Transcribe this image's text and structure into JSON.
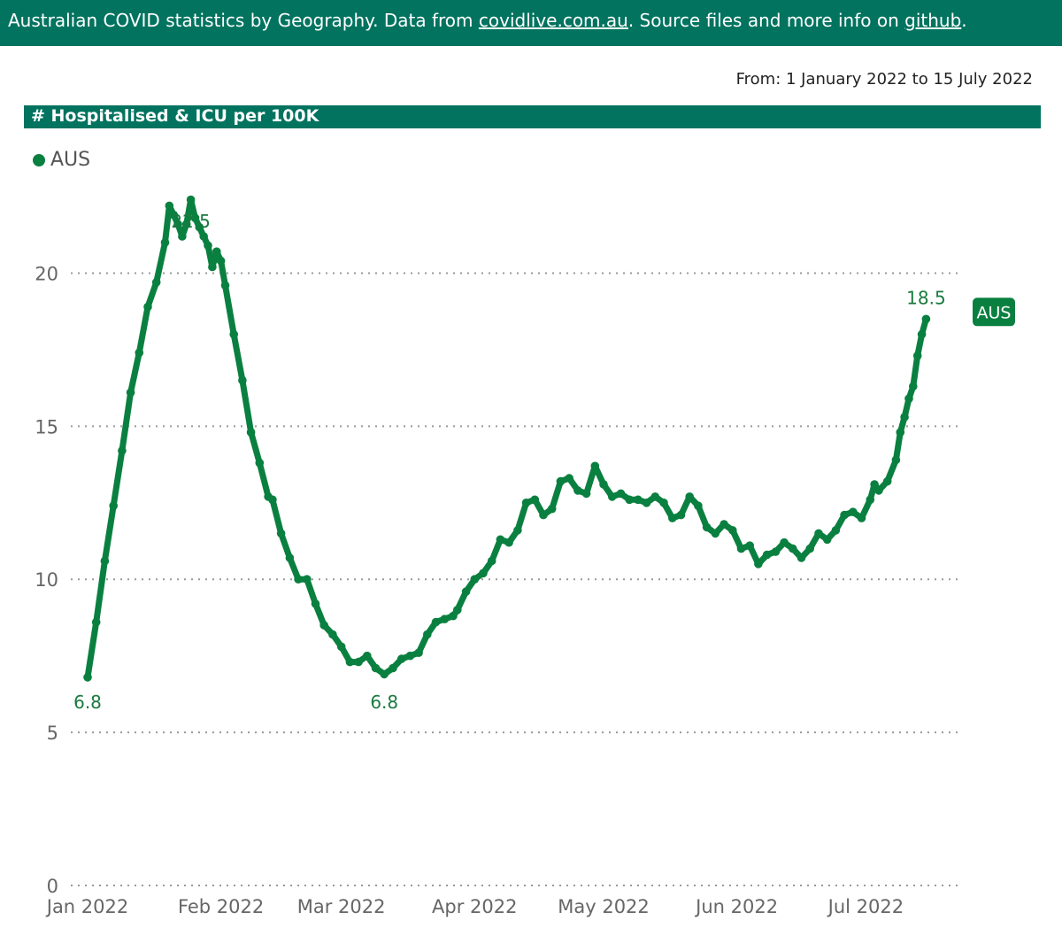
{
  "header": {
    "text_1": "Australian COVID statistics by Geography. Data from ",
    "link_data": "covidlive.com.au",
    "text_2": ". Source files and more info on ",
    "link_source": "github",
    "text_3": "."
  },
  "date_range": "From: 1 January 2022 to 15 July 2022",
  "panel_title": "# Hospitalised & ICU per 100K",
  "legend": {
    "label": "AUS"
  },
  "colors": {
    "header_bg": "#01735f",
    "series": "#0a8040",
    "label_text": "#1a7a3f"
  },
  "chart_data": {
    "type": "line",
    "title": "# Hospitalised & ICU per 100K",
    "ylim": [
      0,
      22.5
    ],
    "xlim": [
      "2022-01-01",
      "2022-07-25"
    ],
    "y_ticks": [
      "0",
      "5",
      "10",
      "15",
      "20"
    ],
    "x_ticks": [
      {
        "date": "2022-01-01",
        "label": "Jan 2022"
      },
      {
        "date": "2022-02-01",
        "label": "Feb 2022"
      },
      {
        "date": "2022-03-01",
        "label": "Mar 2022"
      },
      {
        "date": "2022-04-01",
        "label": "Apr 2022"
      },
      {
        "date": "2022-05-01",
        "label": "May 2022"
      },
      {
        "date": "2022-06-01",
        "label": "Jun 2022"
      },
      {
        "date": "2022-07-01",
        "label": "Jul 2022"
      }
    ],
    "grid": "horizontal dotted",
    "legend_position": "top-left",
    "data_labels": [
      {
        "date": "2022-01-01",
        "y": 6.8,
        "text": "6.8",
        "pos": "below"
      },
      {
        "date": "2022-01-25",
        "y": 22.5,
        "text": "22.5",
        "pos": "below"
      },
      {
        "date": "2022-03-11",
        "y": 6.8,
        "text": "6.8",
        "pos": "below"
      },
      {
        "date": "2022-07-15",
        "y": 18.5,
        "text": "18.5",
        "pos": "above"
      }
    ],
    "end_label": "AUS",
    "series": [
      {
        "name": "AUS",
        "points": [
          [
            "2022-01-01",
            6.8
          ],
          [
            "2022-01-03",
            8.6
          ],
          [
            "2022-01-05",
            10.6
          ],
          [
            "2022-01-07",
            12.4
          ],
          [
            "2022-01-09",
            14.2
          ],
          [
            "2022-01-11",
            16.1
          ],
          [
            "2022-01-13",
            17.4
          ],
          [
            "2022-01-15",
            18.9
          ],
          [
            "2022-01-17",
            19.7
          ],
          [
            "2022-01-19",
            21.0
          ],
          [
            "2022-01-20",
            22.2
          ],
          [
            "2022-01-21",
            21.9
          ],
          [
            "2022-01-22",
            21.6
          ],
          [
            "2022-01-23",
            21.2
          ],
          [
            "2022-01-24",
            21.6
          ],
          [
            "2022-01-25",
            22.4
          ],
          [
            "2022-01-26",
            21.8
          ],
          [
            "2022-01-27",
            21.5
          ],
          [
            "2022-01-28",
            21.2
          ],
          [
            "2022-01-29",
            20.9
          ],
          [
            "2022-01-30",
            20.2
          ],
          [
            "2022-01-31",
            20.7
          ],
          [
            "2022-02-01",
            20.4
          ],
          [
            "2022-02-02",
            19.6
          ],
          [
            "2022-02-04",
            18.0
          ],
          [
            "2022-02-06",
            16.5
          ],
          [
            "2022-02-08",
            14.8
          ],
          [
            "2022-02-10",
            13.8
          ],
          [
            "2022-02-12",
            12.7
          ],
          [
            "2022-02-13",
            12.6
          ],
          [
            "2022-02-15",
            11.5
          ],
          [
            "2022-02-17",
            10.7
          ],
          [
            "2022-02-19",
            10.0
          ],
          [
            "2022-02-21",
            10.0
          ],
          [
            "2022-02-23",
            9.2
          ],
          [
            "2022-02-25",
            8.5
          ],
          [
            "2022-02-27",
            8.2
          ],
          [
            "2022-03-01",
            7.8
          ],
          [
            "2022-03-03",
            7.3
          ],
          [
            "2022-03-05",
            7.3
          ],
          [
            "2022-03-07",
            7.5
          ],
          [
            "2022-03-09",
            7.1
          ],
          [
            "2022-03-11",
            6.9
          ],
          [
            "2022-03-13",
            7.1
          ],
          [
            "2022-03-15",
            7.4
          ],
          [
            "2022-03-17",
            7.5
          ],
          [
            "2022-03-19",
            7.6
          ],
          [
            "2022-03-21",
            8.2
          ],
          [
            "2022-03-23",
            8.6
          ],
          [
            "2022-03-25",
            8.7
          ],
          [
            "2022-03-27",
            8.8
          ],
          [
            "2022-03-28",
            9.0
          ],
          [
            "2022-03-30",
            9.6
          ],
          [
            "2022-04-01",
            10.0
          ],
          [
            "2022-04-03",
            10.2
          ],
          [
            "2022-04-05",
            10.6
          ],
          [
            "2022-04-07",
            11.3
          ],
          [
            "2022-04-09",
            11.2
          ],
          [
            "2022-04-11",
            11.6
          ],
          [
            "2022-04-13",
            12.5
          ],
          [
            "2022-04-15",
            12.6
          ],
          [
            "2022-04-17",
            12.1
          ],
          [
            "2022-04-19",
            12.3
          ],
          [
            "2022-04-21",
            13.2
          ],
          [
            "2022-04-23",
            13.3
          ],
          [
            "2022-04-25",
            12.9
          ],
          [
            "2022-04-27",
            12.8
          ],
          [
            "2022-04-29",
            13.7
          ],
          [
            "2022-05-01",
            13.1
          ],
          [
            "2022-05-03",
            12.7
          ],
          [
            "2022-05-05",
            12.8
          ],
          [
            "2022-05-07",
            12.6
          ],
          [
            "2022-05-09",
            12.6
          ],
          [
            "2022-05-11",
            12.5
          ],
          [
            "2022-05-13",
            12.7
          ],
          [
            "2022-05-15",
            12.5
          ],
          [
            "2022-05-17",
            12.0
          ],
          [
            "2022-05-19",
            12.1
          ],
          [
            "2022-05-21",
            12.7
          ],
          [
            "2022-05-23",
            12.4
          ],
          [
            "2022-05-25",
            11.7
          ],
          [
            "2022-05-27",
            11.5
          ],
          [
            "2022-05-29",
            11.8
          ],
          [
            "2022-05-31",
            11.6
          ],
          [
            "2022-06-02",
            11.0
          ],
          [
            "2022-06-04",
            11.1
          ],
          [
            "2022-06-06",
            10.5
          ],
          [
            "2022-06-08",
            10.8
          ],
          [
            "2022-06-10",
            10.9
          ],
          [
            "2022-06-12",
            11.2
          ],
          [
            "2022-06-14",
            11.0
          ],
          [
            "2022-06-16",
            10.7
          ],
          [
            "2022-06-18",
            11.0
          ],
          [
            "2022-06-20",
            11.5
          ],
          [
            "2022-06-22",
            11.3
          ],
          [
            "2022-06-24",
            11.6
          ],
          [
            "2022-06-26",
            12.1
          ],
          [
            "2022-06-28",
            12.2
          ],
          [
            "2022-06-30",
            12.0
          ],
          [
            "2022-07-02",
            12.6
          ],
          [
            "2022-07-03",
            13.1
          ],
          [
            "2022-07-04",
            12.9
          ],
          [
            "2022-07-06",
            13.2
          ],
          [
            "2022-07-08",
            13.9
          ],
          [
            "2022-07-09",
            14.8
          ],
          [
            "2022-07-10",
            15.3
          ],
          [
            "2022-07-11",
            15.9
          ],
          [
            "2022-07-12",
            16.3
          ],
          [
            "2022-07-13",
            17.3
          ],
          [
            "2022-07-14",
            18.0
          ],
          [
            "2022-07-15",
            18.5
          ]
        ]
      }
    ]
  }
}
